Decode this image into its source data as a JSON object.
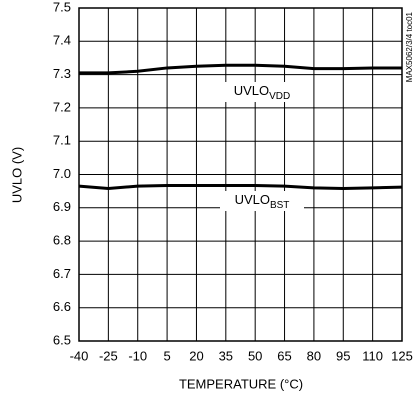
{
  "chart_data": {
    "type": "line",
    "x_label": "TEMPERATURE (°C)",
    "y_label": "UVLO (V)",
    "note": "MAX5062/3/4 toc01",
    "x": [
      -40,
      -25,
      -10,
      5,
      20,
      35,
      50,
      65,
      80,
      95,
      110,
      125
    ],
    "series": [
      {
        "name": "UVLO_VDD",
        "color": "#000000",
        "values": [
          7.305,
          7.305,
          7.31,
          7.32,
          7.325,
          7.328,
          7.328,
          7.325,
          7.318,
          7.318,
          7.32,
          7.32
        ]
      },
      {
        "name": "UVLO_BST",
        "color": "#000000",
        "values": [
          6.965,
          6.958,
          6.965,
          6.967,
          6.967,
          6.967,
          6.967,
          6.965,
          6.96,
          6.958,
          6.96,
          6.962
        ]
      }
    ],
    "annotations": [
      {
        "text": "UVLO",
        "sub": "VDD"
      },
      {
        "text": "UVLO",
        "sub": "BST"
      }
    ],
    "xlim": [
      -40,
      125
    ],
    "xticks": [
      -40,
      -25,
      -10,
      5,
      20,
      35,
      50,
      65,
      80,
      95,
      110,
      125
    ],
    "ylim": [
      6.5,
      7.5
    ],
    "yticks": [
      6.5,
      6.6,
      6.7,
      6.8,
      6.9,
      {
        "value": 7.0,
        "label": "7.0"
      },
      7.1,
      7.2,
      7.3,
      7.4,
      7.5
    ],
    "grid": true
  }
}
